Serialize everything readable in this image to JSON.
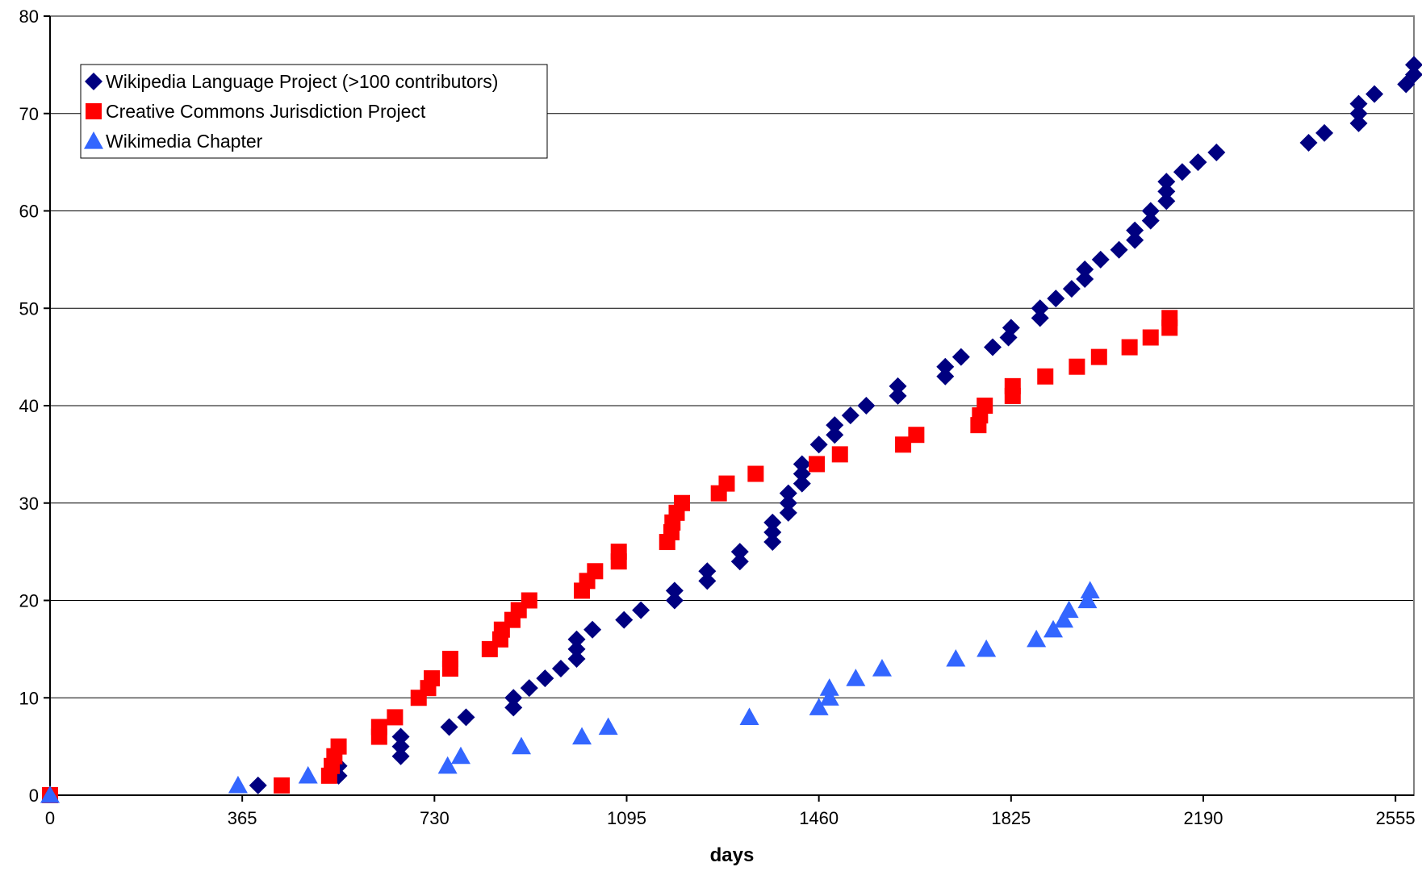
{
  "chart_data": {
    "type": "scatter",
    "title": "",
    "xlabel": "days",
    "ylabel": "",
    "xlim": [
      0,
      2590
    ],
    "ylim": [
      0,
      80
    ],
    "xticks": [
      0,
      365,
      730,
      1095,
      1460,
      1825,
      2190,
      2555
    ],
    "yticks": [
      0,
      10,
      20,
      30,
      40,
      50,
      60,
      70,
      80
    ],
    "grid": "horizontal",
    "legend_position": "top-left",
    "series": [
      {
        "name": "Wikipedia Language Project (>100 contributors)",
        "marker": "diamond",
        "color": "#000080",
        "points": [
          [
            395,
            1
          ],
          [
            548,
            2
          ],
          [
            548,
            3
          ],
          [
            666,
            4
          ],
          [
            666,
            5
          ],
          [
            666,
            6
          ],
          [
            758,
            7
          ],
          [
            790,
            8
          ],
          [
            880,
            9
          ],
          [
            880,
            10
          ],
          [
            910,
            11
          ],
          [
            940,
            12
          ],
          [
            970,
            13
          ],
          [
            1000,
            14
          ],
          [
            1000,
            15
          ],
          [
            1000,
            16
          ],
          [
            1030,
            17
          ],
          [
            1090,
            18
          ],
          [
            1122,
            19
          ],
          [
            1186,
            20
          ],
          [
            1186,
            21
          ],
          [
            1248,
            22
          ],
          [
            1248,
            23
          ],
          [
            1310,
            24
          ],
          [
            1310,
            25
          ],
          [
            1372,
            26
          ],
          [
            1372,
            27
          ],
          [
            1372,
            28
          ],
          [
            1402,
            29
          ],
          [
            1402,
            30
          ],
          [
            1402,
            31
          ],
          [
            1428,
            32
          ],
          [
            1428,
            33
          ],
          [
            1428,
            34
          ],
          [
            1460,
            36
          ],
          [
            1490,
            37
          ],
          [
            1490,
            38
          ],
          [
            1520,
            39
          ],
          [
            1550,
            40
          ],
          [
            1610,
            41
          ],
          [
            1610,
            42
          ],
          [
            1700,
            43
          ],
          [
            1700,
            44
          ],
          [
            1730,
            45
          ],
          [
            1790,
            46
          ],
          [
            1820,
            47
          ],
          [
            1825,
            48
          ],
          [
            1880,
            49
          ],
          [
            1880,
            50
          ],
          [
            1910,
            51
          ],
          [
            1940,
            52
          ],
          [
            1965,
            53
          ],
          [
            1965,
            54
          ],
          [
            1995,
            55
          ],
          [
            2030,
            56
          ],
          [
            2060,
            57
          ],
          [
            2060,
            58
          ],
          [
            2090,
            59
          ],
          [
            2090,
            60
          ],
          [
            2120,
            61
          ],
          [
            2120,
            62
          ],
          [
            2120,
            63
          ],
          [
            2150,
            64
          ],
          [
            2180,
            65
          ],
          [
            2215,
            66
          ],
          [
            2390,
            67
          ],
          [
            2420,
            68
          ],
          [
            2485,
            69
          ],
          [
            2485,
            70
          ],
          [
            2485,
            71
          ],
          [
            2515,
            72
          ],
          [
            2575,
            73
          ],
          [
            2605,
            74
          ],
          [
            2605,
            75
          ]
        ]
      },
      {
        "name": "Creative Commons Jurisdiction Project",
        "marker": "square",
        "color": "#ff0000",
        "points": [
          [
            0,
            0
          ],
          [
            440,
            1
          ],
          [
            530,
            2
          ],
          [
            535,
            3
          ],
          [
            540,
            4
          ],
          [
            548,
            5
          ],
          [
            625,
            6
          ],
          [
            625,
            7
          ],
          [
            655,
            8
          ],
          [
            700,
            10
          ],
          [
            718,
            11
          ],
          [
            725,
            12
          ],
          [
            760,
            13
          ],
          [
            760,
            14
          ],
          [
            835,
            15
          ],
          [
            855,
            16
          ],
          [
            858,
            17
          ],
          [
            878,
            18
          ],
          [
            890,
            19
          ],
          [
            910,
            20
          ],
          [
            1010,
            21
          ],
          [
            1020,
            22
          ],
          [
            1035,
            23
          ],
          [
            1080,
            24
          ],
          [
            1080,
            25
          ],
          [
            1172,
            26
          ],
          [
            1180,
            27
          ],
          [
            1182,
            28
          ],
          [
            1190,
            29
          ],
          [
            1200,
            30
          ],
          [
            1270,
            31
          ],
          [
            1285,
            32
          ],
          [
            1340,
            33
          ],
          [
            1456,
            34
          ],
          [
            1500,
            35
          ],
          [
            1620,
            36
          ],
          [
            1645,
            37
          ],
          [
            1763,
            38
          ],
          [
            1766,
            39
          ],
          [
            1775,
            40
          ],
          [
            1828,
            41
          ],
          [
            1828,
            42
          ],
          [
            1890,
            43
          ],
          [
            1950,
            44
          ],
          [
            1992,
            45
          ],
          [
            2050,
            46
          ],
          [
            2090,
            47
          ],
          [
            2126,
            48
          ],
          [
            2126,
            49
          ]
        ]
      },
      {
        "name": "Wikimedia Chapter",
        "marker": "triangle",
        "color": "#3366ff",
        "points": [
          [
            0,
            0
          ],
          [
            357,
            1
          ],
          [
            490,
            2
          ],
          [
            755,
            3
          ],
          [
            780,
            4
          ],
          [
            895,
            5
          ],
          [
            1010,
            6
          ],
          [
            1060,
            7
          ],
          [
            1328,
            8
          ],
          [
            1460,
            9
          ],
          [
            1480,
            10
          ],
          [
            1480,
            11
          ],
          [
            1530,
            12
          ],
          [
            1580,
            13
          ],
          [
            1720,
            14
          ],
          [
            1778,
            15
          ],
          [
            1873,
            16
          ],
          [
            1905,
            17
          ],
          [
            1925,
            18
          ],
          [
            1935,
            19
          ],
          [
            1970,
            20
          ],
          [
            1975,
            21
          ]
        ]
      }
    ]
  }
}
